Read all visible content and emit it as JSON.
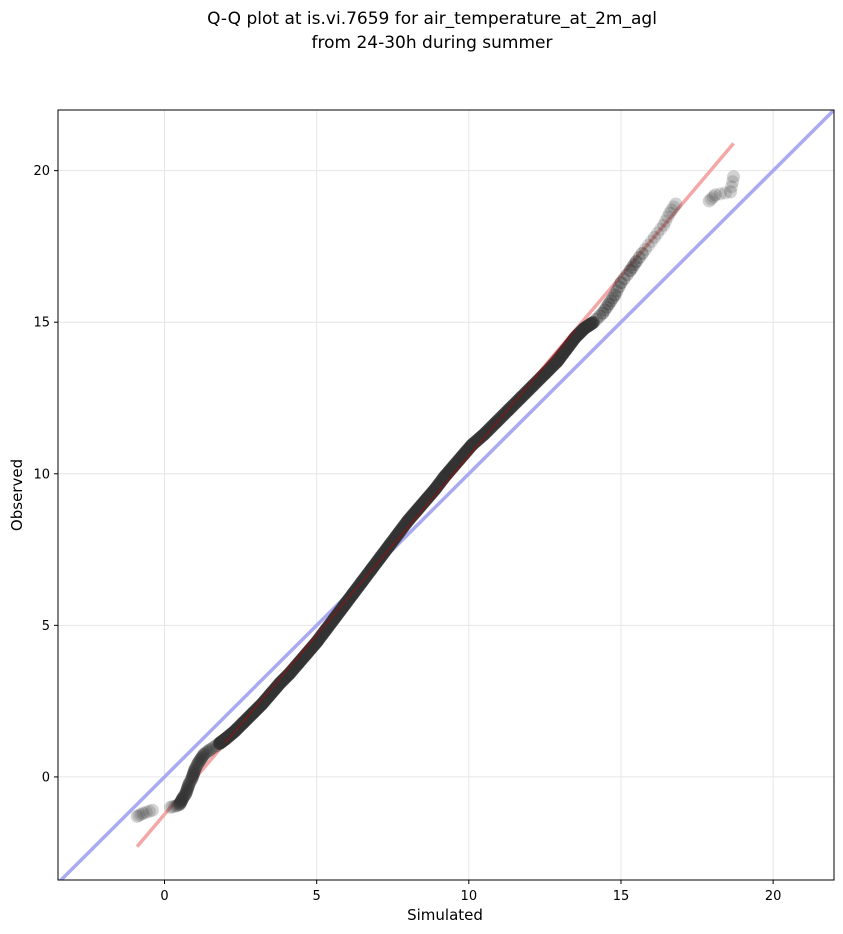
{
  "chart_data": {
    "type": "scatter",
    "title_line1": "Q-Q plot at is.vi.7659 for air_temperature_at_2m_agl",
    "title_line2": "from 24-30h during summer",
    "xlabel": "Simulated",
    "ylabel": "Observed",
    "xlim": [
      -3.5,
      22
    ],
    "ylim": [
      -3.4,
      22
    ],
    "xticks": [
      0,
      5,
      10,
      15,
      20
    ],
    "yticks": [
      0,
      5,
      10,
      15,
      20
    ],
    "xtick_labels": [
      "0",
      "5",
      "10",
      "15",
      "20"
    ],
    "ytick_labels": [
      "0",
      "5",
      "10",
      "15",
      "20"
    ],
    "grid": true,
    "colors": {
      "identity_line": "#aaaaf2",
      "fit_line": "#f4a7a7",
      "points": "#333333",
      "grid": "#e6e6e6"
    },
    "identity_line": {
      "x": [
        -3.5,
        22
      ],
      "y": [
        -3.5,
        22
      ]
    },
    "fit_line": {
      "x": [
        -0.9,
        18.7
      ],
      "y": [
        -2.3,
        20.9
      ]
    },
    "points_quantiles": [
      [
        -0.9,
        -1.3
      ],
      [
        -0.7,
        -1.2
      ],
      [
        -0.4,
        -1.1
      ],
      [
        0.2,
        -1.0
      ],
      [
        0.4,
        -0.95
      ],
      [
        0.5,
        -0.9
      ],
      [
        0.55,
        -0.8
      ],
      [
        0.6,
        -0.7
      ],
      [
        0.7,
        -0.55
      ],
      [
        0.75,
        -0.4
      ],
      [
        0.8,
        -0.25
      ],
      [
        0.9,
        -0.05
      ],
      [
        0.95,
        0.1
      ],
      [
        1.0,
        0.25
      ],
      [
        1.1,
        0.45
      ],
      [
        1.2,
        0.6
      ],
      [
        1.3,
        0.75
      ],
      [
        1.5,
        0.9
      ],
      [
        1.8,
        1.1
      ],
      [
        2.0,
        1.25
      ],
      [
        2.3,
        1.5
      ],
      [
        2.6,
        1.8
      ],
      [
        2.9,
        2.1
      ],
      [
        3.2,
        2.4
      ],
      [
        3.5,
        2.75
      ],
      [
        3.8,
        3.1
      ],
      [
        4.1,
        3.4
      ],
      [
        4.4,
        3.75
      ],
      [
        4.7,
        4.1
      ],
      [
        5.0,
        4.45
      ],
      [
        5.3,
        4.85
      ],
      [
        5.6,
        5.25
      ],
      [
        5.9,
        5.65
      ],
      [
        6.2,
        6.05
      ],
      [
        6.5,
        6.45
      ],
      [
        6.8,
        6.85
      ],
      [
        7.1,
        7.25
      ],
      [
        7.4,
        7.65
      ],
      [
        7.7,
        8.05
      ],
      [
        8.0,
        8.45
      ],
      [
        8.3,
        8.8
      ],
      [
        8.6,
        9.15
      ],
      [
        8.9,
        9.5
      ],
      [
        9.2,
        9.9
      ],
      [
        9.5,
        10.25
      ],
      [
        9.8,
        10.6
      ],
      [
        10.1,
        10.95
      ],
      [
        10.5,
        11.3
      ],
      [
        10.9,
        11.7
      ],
      [
        11.3,
        12.1
      ],
      [
        11.7,
        12.5
      ],
      [
        12.1,
        12.9
      ],
      [
        12.5,
        13.3
      ],
      [
        12.9,
        13.7
      ],
      [
        13.2,
        14.1
      ],
      [
        13.5,
        14.5
      ],
      [
        13.8,
        14.8
      ],
      [
        14.1,
        15.0
      ],
      [
        14.4,
        15.3
      ],
      [
        14.6,
        15.6
      ],
      [
        14.8,
        15.9
      ],
      [
        15.0,
        16.3
      ],
      [
        15.3,
        16.7
      ],
      [
        15.5,
        17.0
      ],
      [
        15.8,
        17.4
      ],
      [
        16.1,
        17.8
      ],
      [
        16.4,
        18.2
      ],
      [
        16.6,
        18.6
      ],
      [
        16.8,
        18.9
      ],
      [
        17.9,
        19.0
      ],
      [
        18.1,
        19.2
      ],
      [
        18.6,
        19.3
      ],
      [
        18.7,
        19.8
      ]
    ]
  }
}
